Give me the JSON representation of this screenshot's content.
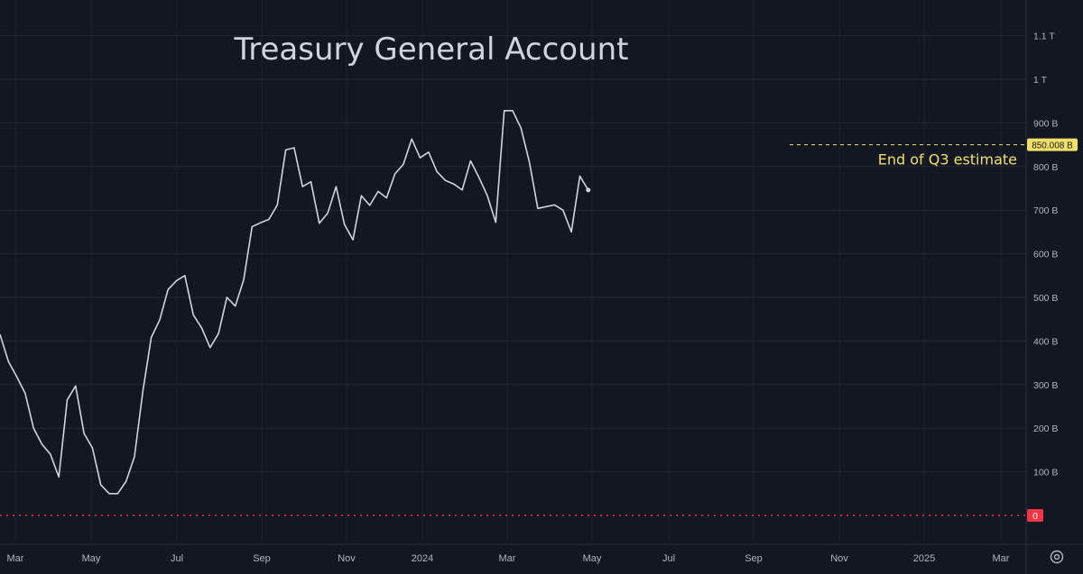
{
  "chart_data": {
    "type": "line",
    "title": "Treasury General Account",
    "x_tick_labels": [
      "Mar",
      "May",
      "Jul",
      "Sep",
      "Nov",
      "2024",
      "Mar",
      "May",
      "Jul",
      "Sep",
      "Nov",
      "2025",
      "Mar"
    ],
    "y_tick_labels": [
      "1.1 T",
      "1 T",
      "900 B",
      "800 B",
      "700 B",
      "600 B",
      "500 B",
      "400 B",
      "300 B",
      "200 B",
      "100 B"
    ],
    "y_ticks": [
      1100,
      1000,
      900,
      800,
      700,
      600,
      500,
      400,
      300,
      200,
      100
    ],
    "ylim": [
      0,
      1175
    ],
    "y_unit": "Billions USD",
    "grid": true,
    "series": [
      {
        "color": "#d1d4dc",
        "x": [
          "2023-02-15",
          "2023-02-22",
          "2023-03-01",
          "2023-03-08",
          "2023-03-15",
          "2023-03-22",
          "2023-03-29",
          "2023-04-05",
          "2023-04-12",
          "2023-04-19",
          "2023-04-26",
          "2023-05-03",
          "2023-05-10",
          "2023-05-17",
          "2023-05-24",
          "2023-05-31",
          "2023-06-07",
          "2023-06-14",
          "2023-06-21",
          "2023-06-28",
          "2023-07-05",
          "2023-07-12",
          "2023-07-19",
          "2023-07-26",
          "2023-08-02",
          "2023-08-09",
          "2023-08-16",
          "2023-08-23",
          "2023-08-30",
          "2023-09-06",
          "2023-09-13",
          "2023-09-20",
          "2023-09-27",
          "2023-10-04",
          "2023-10-11",
          "2023-10-18",
          "2023-10-25",
          "2023-11-01",
          "2023-11-08",
          "2023-11-15",
          "2023-11-22",
          "2023-11-29",
          "2023-12-06",
          "2023-12-13",
          "2023-12-20",
          "2023-12-27",
          "2024-01-03",
          "2024-01-10",
          "2024-01-17",
          "2024-01-24",
          "2024-01-31",
          "2024-02-07",
          "2024-02-14",
          "2024-02-21",
          "2024-02-28",
          "2024-03-06",
          "2024-03-13",
          "2024-03-20",
          "2024-03-27",
          "2024-04-03",
          "2024-04-10",
          "2024-04-17",
          "2024-04-24",
          "2024-05-01",
          "2024-05-08",
          "2024-05-15",
          "2024-05-22",
          "2024-05-29",
          "2024-06-05",
          "2024-06-12",
          "2024-06-19"
        ],
        "values": [
          415,
          353,
          318,
          280,
          200,
          163,
          140,
          88,
          265,
          297,
          188,
          155,
          70,
          50,
          50,
          78,
          135,
          285,
          408,
          448,
          518,
          538,
          550,
          460,
          430,
          385,
          417,
          500,
          480,
          540,
          662,
          671,
          679,
          712,
          838,
          843,
          754,
          765,
          670,
          693,
          754,
          667,
          632,
          733,
          711,
          743,
          728,
          783,
          805,
          863,
          820,
          833,
          788,
          768,
          760,
          746,
          813,
          775,
          733,
          672,
          928,
          928,
          888,
          810,
          704,
          708,
          712,
          700,
          650,
          778,
          746
        ]
      }
    ],
    "reference_lines": [
      {
        "value": 850.008,
        "label": "850.008 B",
        "annotation": "End of Q3 estimate",
        "color": "#f0e06a"
      },
      {
        "value": 0,
        "label": "0",
        "color": "#f23645"
      }
    ]
  }
}
